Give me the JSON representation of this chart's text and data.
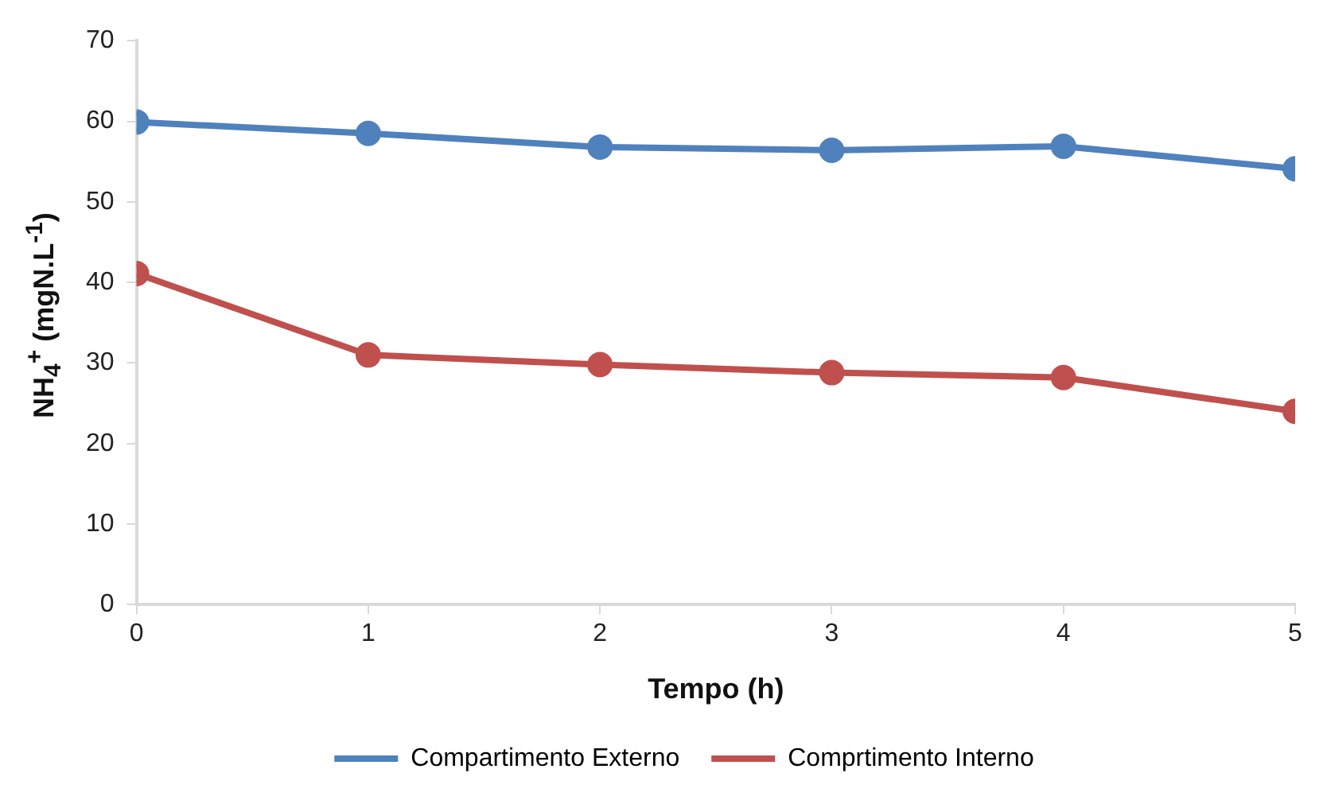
{
  "chart_data": {
    "type": "line",
    "xlabel": "Tempo (h)",
    "ylabel": "NH$_{4}$$^{+}$ (mgN.L$^{-1}$)",
    "x": [
      0,
      1,
      2,
      3,
      4,
      5
    ],
    "series": [
      {
        "name": "Compartimento Externo",
        "color": "#4f81bd",
        "values": [
          59.9,
          58.5,
          56.8,
          56.4,
          56.9,
          54.1
        ]
      },
      {
        "name": "Comprtimento Interno",
        "color": "#c0504d",
        "values": [
          41.1,
          31.0,
          29.8,
          28.8,
          28.2,
          24.0
        ]
      }
    ],
    "xlim": [
      0,
      5
    ],
    "xticks": [
      0,
      1,
      2,
      3,
      4,
      5
    ],
    "ylim": [
      0,
      70
    ],
    "yticks": [
      0,
      10,
      20,
      30,
      40,
      50,
      60,
      70
    ],
    "grid": false,
    "legend": "bottom",
    "marker": "circle",
    "line_style": "solid"
  }
}
